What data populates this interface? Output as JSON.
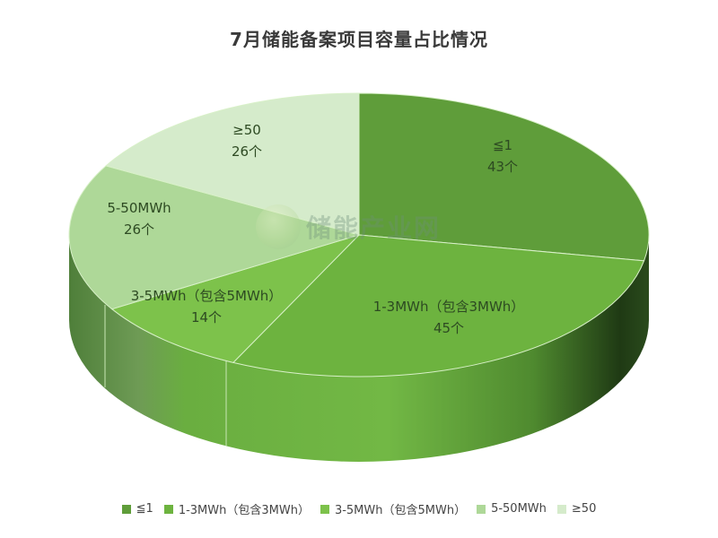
{
  "title": "7月储能备案项目容量占比情况",
  "watermark": "储能产业网",
  "chart_data": {
    "type": "pie",
    "style": "3d",
    "title": "7月储能备案项目容量占比情况",
    "unit": "个",
    "categories": [
      "≦1",
      "1-3MWh（包含3MWh）",
      "3-5MWh（包含5MWh）",
      "5-50MWh",
      "≥50"
    ],
    "values": [
      43,
      45,
      14,
      26,
      26
    ],
    "colors": [
      "#5f9d3a",
      "#6db33f",
      "#7dc24b",
      "#aed898",
      "#d5ebcb"
    ],
    "legend_position": "bottom"
  },
  "labels": [
    {
      "name": "≦1",
      "count": "43个"
    },
    {
      "name": "1-3MWh（包含3MWh）",
      "count": "45个"
    },
    {
      "name": "3-5MWh（包含5MWh）",
      "count": "14个"
    },
    {
      "name": "5-50MWh",
      "count": "26个"
    },
    {
      "name": "≥50",
      "count": "26个"
    }
  ],
  "legend": [
    {
      "label": "≦1",
      "color": "#5f9d3a"
    },
    {
      "label": "1-3MWh（包含3MWh）",
      "color": "#6db33f"
    },
    {
      "label": "3-5MWh（包含5MWh）",
      "color": "#7dc24b"
    },
    {
      "label": "5-50MWh",
      "color": "#aed898"
    },
    {
      "label": "≥50",
      "color": "#d5ebcb"
    }
  ]
}
